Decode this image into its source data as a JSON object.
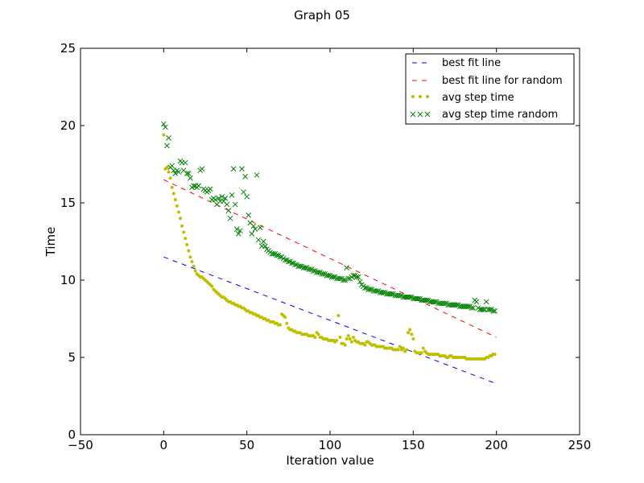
{
  "chart_data": {
    "type": "scatter",
    "title": "Graph 05",
    "xlabel": "Iteration value",
    "ylabel": "Time",
    "xlim": [
      -50,
      250
    ],
    "ylim": [
      0,
      25
    ],
    "xticks": [
      -50,
      0,
      50,
      100,
      150,
      200,
      250
    ],
    "yticks": [
      0,
      5,
      10,
      15,
      20,
      25
    ],
    "legend_position": "top-right",
    "colors": {
      "blue": "#0000ff",
      "red": "#ff0000",
      "yellow": "#bfbf00",
      "green": "#008000"
    },
    "series": [
      {
        "name": "best fit line",
        "kind": "dashed-line",
        "color": "#0000ff",
        "x": [
          0,
          200
        ],
        "y": [
          11.5,
          3.3
        ]
      },
      {
        "name": "best fit line for random",
        "kind": "dashed-line",
        "color": "#ff0000",
        "x": [
          0,
          200
        ],
        "y": [
          16.5,
          6.3
        ]
      },
      {
        "name": "avg step time",
        "kind": "dot",
        "color": "#bfbf00",
        "x": [
          0,
          1,
          2,
          3,
          4,
          5,
          6,
          7,
          8,
          9,
          10,
          11,
          12,
          13,
          14,
          15,
          16,
          17,
          18,
          19,
          20,
          21,
          22,
          23,
          24,
          25,
          26,
          27,
          28,
          29,
          30,
          31,
          32,
          33,
          34,
          35,
          36,
          37,
          38,
          39,
          40,
          41,
          42,
          43,
          44,
          45,
          46,
          47,
          48,
          49,
          50,
          51,
          52,
          53,
          54,
          55,
          56,
          57,
          58,
          59,
          60,
          61,
          62,
          63,
          64,
          65,
          66,
          67,
          68,
          69,
          70,
          71,
          72,
          73,
          74,
          75,
          76,
          77,
          78,
          79,
          80,
          81,
          82,
          83,
          84,
          85,
          86,
          87,
          88,
          89,
          90,
          91,
          92,
          93,
          94,
          95,
          96,
          97,
          98,
          99,
          100,
          101,
          102,
          103,
          104,
          105,
          106,
          107,
          108,
          109,
          110,
          111,
          112,
          113,
          114,
          115,
          116,
          117,
          118,
          119,
          120,
          121,
          122,
          123,
          124,
          125,
          126,
          127,
          128,
          129,
          130,
          131,
          132,
          133,
          134,
          135,
          136,
          137,
          138,
          139,
          140,
          141,
          142,
          143,
          144,
          145,
          146,
          147,
          148,
          149,
          150,
          151,
          152,
          153,
          154,
          155,
          156,
          157,
          158,
          159,
          160,
          161,
          162,
          163,
          164,
          165,
          166,
          167,
          168,
          169,
          170,
          171,
          172,
          173,
          174,
          175,
          176,
          177,
          178,
          179,
          180,
          181,
          182,
          183,
          184,
          185,
          186,
          187,
          188,
          189,
          190,
          191,
          192,
          193,
          194,
          195,
          196,
          197,
          198,
          199
        ],
        "y": [
          19.4,
          17.2,
          17.3,
          17.0,
          16.6,
          16.0,
          15.6,
          15.2,
          14.8,
          14.4,
          14.0,
          13.5,
          13.1,
          12.7,
          12.3,
          11.9,
          11.5,
          11.2,
          10.9,
          10.6,
          10.4,
          10.3,
          10.2,
          10.2,
          10.1,
          10.0,
          9.9,
          9.8,
          9.7,
          9.6,
          9.4,
          9.3,
          9.2,
          9.1,
          9.0,
          8.9,
          8.9,
          8.8,
          8.7,
          8.6,
          8.6,
          8.5,
          8.5,
          8.4,
          8.4,
          8.3,
          8.3,
          8.2,
          8.2,
          8.1,
          8.0,
          8.0,
          7.9,
          7.9,
          7.8,
          7.8,
          7.7,
          7.7,
          7.6,
          7.6,
          7.5,
          7.5,
          7.4,
          7.4,
          7.3,
          7.3,
          7.3,
          7.2,
          7.2,
          7.1,
          7.1,
          7.8,
          7.7,
          7.6,
          7.2,
          6.9,
          6.8,
          6.8,
          6.7,
          6.7,
          6.6,
          6.6,
          6.6,
          6.5,
          6.5,
          6.5,
          6.5,
          6.4,
          6.4,
          6.4,
          6.4,
          6.3,
          6.6,
          6.5,
          6.3,
          6.3,
          6.2,
          6.2,
          6.2,
          6.1,
          6.1,
          6.1,
          6.1,
          6.0,
          6.1,
          7.7,
          6.3,
          5.9,
          5.9,
          5.8,
          6.2,
          6.4,
          6.2,
          6.0,
          6.3,
          6.1,
          6.0,
          6.0,
          5.9,
          5.9,
          5.9,
          5.8,
          6.0,
          6.0,
          5.9,
          5.8,
          5.8,
          5.8,
          5.7,
          5.7,
          5.7,
          5.7,
          5.7,
          5.6,
          5.6,
          5.6,
          5.6,
          5.6,
          5.5,
          5.5,
          5.5,
          5.5,
          5.7,
          5.5,
          5.6,
          5.4,
          5.5,
          6.6,
          6.8,
          6.5,
          6.2,
          5.4,
          5.3,
          5.3,
          5.3,
          5.3,
          5.6,
          5.4,
          5.3,
          5.2,
          5.2,
          5.2,
          5.2,
          5.2,
          5.2,
          5.2,
          5.1,
          5.1,
          5.1,
          5.1,
          5.0,
          5.0,
          5.1,
          5.1,
          5.0,
          5.0,
          5.0,
          5.0,
          5.0,
          5.0,
          5.0,
          5.0,
          4.9,
          4.9,
          4.9,
          4.9,
          4.9,
          4.9,
          4.9,
          4.9,
          4.9,
          4.9,
          4.9,
          4.9,
          5.0,
          5.0,
          5.1,
          5.1,
          5.2,
          5.2
        ]
      },
      {
        "name": "avg step time random",
        "kind": "x-marker",
        "color": "#008000",
        "x": [
          0,
          1,
          2,
          3,
          4,
          5,
          6,
          7,
          8,
          9,
          10,
          11,
          12,
          13,
          14,
          15,
          16,
          17,
          18,
          19,
          20,
          21,
          22,
          23,
          24,
          25,
          26,
          27,
          28,
          29,
          30,
          31,
          32,
          33,
          34,
          35,
          36,
          37,
          38,
          39,
          40,
          41,
          42,
          43,
          44,
          45,
          46,
          47,
          48,
          49,
          50,
          51,
          52,
          53,
          54,
          55,
          56,
          57,
          58,
          59,
          60,
          61,
          62,
          63,
          64,
          65,
          66,
          67,
          68,
          69,
          70,
          71,
          72,
          73,
          74,
          75,
          76,
          77,
          78,
          79,
          80,
          81,
          82,
          83,
          84,
          85,
          86,
          87,
          88,
          89,
          90,
          91,
          92,
          93,
          94,
          95,
          96,
          97,
          98,
          99,
          100,
          101,
          102,
          103,
          104,
          105,
          106,
          107,
          108,
          109,
          110,
          111,
          112,
          113,
          114,
          115,
          116,
          117,
          118,
          119,
          120,
          121,
          122,
          123,
          124,
          125,
          126,
          127,
          128,
          129,
          130,
          131,
          132,
          133,
          134,
          135,
          136,
          137,
          138,
          139,
          140,
          141,
          142,
          143,
          144,
          145,
          146,
          147,
          148,
          149,
          150,
          151,
          152,
          153,
          154,
          155,
          156,
          157,
          158,
          159,
          160,
          161,
          162,
          163,
          164,
          165,
          166,
          167,
          168,
          169,
          170,
          171,
          172,
          173,
          174,
          175,
          176,
          177,
          178,
          179,
          180,
          181,
          182,
          183,
          184,
          185,
          186,
          187,
          188,
          189,
          190,
          191,
          192,
          193,
          194,
          195,
          196,
          197,
          198,
          199
        ],
        "y": [
          20.1,
          19.9,
          18.7,
          19.2,
          17.3,
          17.4,
          17.1,
          16.9,
          17.1,
          17.0,
          17.7,
          17.6,
          17.1,
          17.6,
          16.9,
          16.9,
          16.6,
          16.0,
          16.1,
          16.1,
          16.0,
          16.1,
          17.1,
          17.2,
          15.9,
          15.8,
          15.7,
          15.8,
          15.9,
          15.2,
          15.3,
          15.2,
          14.9,
          15.3,
          15.1,
          15.4,
          15.1,
          15.3,
          14.9,
          14.5,
          14.0,
          15.5,
          17.2,
          14.9,
          13.3,
          13.0,
          13.2,
          17.2,
          15.7,
          16.7,
          15.4,
          14.2,
          13.7,
          13.0,
          13.5,
          13.3,
          16.8,
          12.6,
          13.4,
          12.2,
          12.5,
          12.2,
          12.0,
          11.9,
          11.8,
          11.7,
          11.7,
          11.7,
          11.6,
          11.6,
          11.5,
          11.5,
          11.4,
          11.3,
          11.3,
          11.2,
          11.2,
          11.1,
          11.1,
          11.0,
          11.0,
          10.9,
          10.9,
          10.9,
          10.8,
          10.8,
          10.8,
          10.7,
          10.7,
          10.7,
          10.6,
          10.6,
          10.5,
          10.5,
          10.5,
          10.4,
          10.4,
          10.4,
          10.3,
          10.3,
          10.3,
          10.2,
          10.2,
          10.2,
          10.1,
          10.1,
          10.1,
          10.1,
          10.0,
          10.0,
          10.8,
          10.1,
          10.1,
          10.2,
          10.3,
          10.3,
          10.2,
          10.2,
          9.9,
          9.7,
          9.6,
          9.5,
          9.5,
          9.4,
          9.4,
          9.4,
          9.3,
          9.3,
          9.3,
          9.3,
          9.2,
          9.2,
          9.2,
          9.2,
          9.1,
          9.1,
          9.1,
          9.1,
          9.1,
          9.0,
          9.0,
          9.0,
          9.0,
          9.0,
          8.9,
          8.9,
          8.9,
          8.9,
          8.9,
          8.9,
          8.8,
          8.8,
          8.8,
          8.8,
          8.8,
          8.7,
          8.7,
          8.7,
          8.7,
          8.7,
          8.6,
          8.6,
          8.6,
          8.6,
          8.6,
          8.5,
          8.5,
          8.5,
          8.5,
          8.5,
          8.5,
          8.4,
          8.4,
          8.4,
          8.4,
          8.4,
          8.4,
          8.4,
          8.3,
          8.3,
          8.3,
          8.3,
          8.3,
          8.3,
          8.3,
          8.2,
          8.2,
          8.7,
          8.6,
          8.2,
          8.1,
          8.1,
          8.1,
          8.1,
          8.6,
          8.1,
          8.1,
          8.1,
          8.0,
          8.0
        ]
      }
    ]
  }
}
